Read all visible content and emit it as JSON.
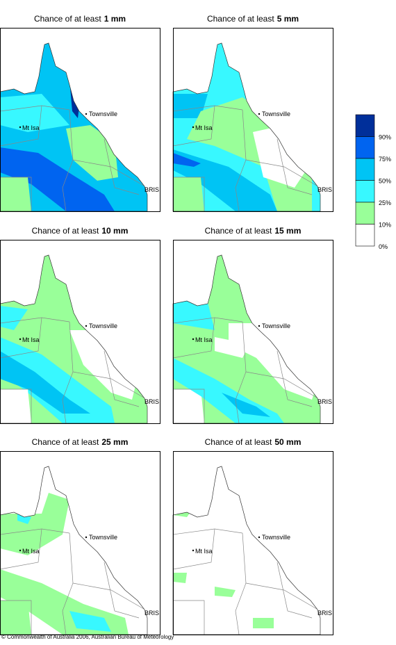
{
  "panels": [
    {
      "title": "Chance of at least",
      "amount": "1 mm"
    },
    {
      "title": "Chance of at least",
      "amount": "5 mm"
    },
    {
      "title": "Chance of at least",
      "amount": "10 mm"
    },
    {
      "title": "Chance of at least",
      "amount": "15 mm"
    },
    {
      "title": "Chance of at least",
      "amount": "25 mm"
    },
    {
      "title": "Chance of at least",
      "amount": "50 mm"
    }
  ],
  "places": [
    "Townsville",
    "Mt Isa",
    "BRIS"
  ],
  "legend": {
    "labels": [
      "90%",
      "75%",
      "50%",
      "25%",
      "10%",
      "0%"
    ],
    "colors": [
      "#002f9a",
      "#0064f0",
      "#00c4f4",
      "#38f8ff",
      "#99ff99",
      "#ffffff"
    ]
  },
  "copyright": "© Commonwealth of Australia 2006, Australian Bureau of Meteorology"
}
